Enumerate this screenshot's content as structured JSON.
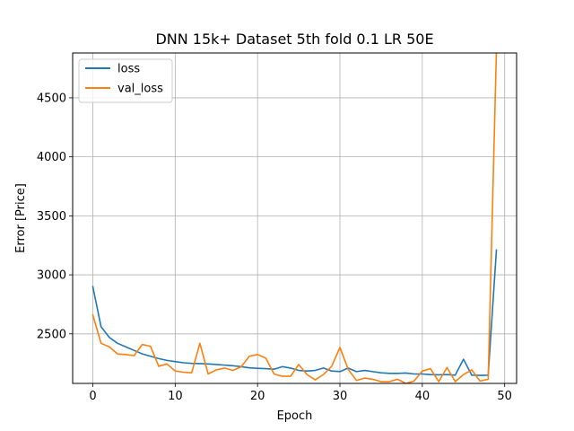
{
  "chart_data": {
    "type": "line",
    "title": "DNN 15k+ Dataset 5th fold 0.1 LR 50E",
    "xlabel": "Epoch",
    "ylabel": "Error [Price]",
    "xlim": [
      -2.45,
      51.45
    ],
    "ylim": [
      2080,
      4880
    ],
    "xticks": [
      0,
      10,
      20,
      30,
      40,
      50
    ],
    "yticks": [
      2500,
      3000,
      3500,
      4000,
      4500
    ],
    "grid": true,
    "legend_position": "top-left",
    "colors": {
      "loss": "#1f77b4",
      "val_loss": "#ff7f0e"
    },
    "x": [
      0,
      1,
      2,
      3,
      4,
      5,
      6,
      7,
      8,
      9,
      10,
      11,
      12,
      13,
      14,
      15,
      16,
      17,
      18,
      19,
      20,
      21,
      22,
      23,
      24,
      25,
      26,
      27,
      28,
      29,
      30,
      31,
      32,
      33,
      34,
      35,
      36,
      37,
      38,
      39,
      40,
      41,
      42,
      43,
      44,
      45,
      46,
      47,
      48,
      49
    ],
    "series": [
      {
        "name": "loss",
        "values": [
          2900,
          2560,
          2470,
          2420,
          2390,
          2360,
          2330,
          2310,
          2290,
          2275,
          2265,
          2255,
          2250,
          2248,
          2245,
          2240,
          2235,
          2230,
          2222,
          2212,
          2208,
          2205,
          2200,
          2222,
          2210,
          2190,
          2185,
          2190,
          2210,
          2185,
          2180,
          2210,
          2180,
          2190,
          2180,
          2170,
          2165,
          2165,
          2168,
          2160,
          2160,
          2155,
          2153,
          2155,
          2150,
          2285,
          2150,
          2148,
          2150,
          3210
        ]
      },
      {
        "name": "val_loss",
        "values": [
          2660,
          2420,
          2390,
          2330,
          2325,
          2315,
          2410,
          2395,
          2225,
          2245,
          2185,
          2175,
          2170,
          2420,
          2160,
          2195,
          2210,
          2190,
          2220,
          2310,
          2325,
          2295,
          2160,
          2140,
          2140,
          2240,
          2155,
          2110,
          2155,
          2225,
          2385,
          2200,
          2105,
          2125,
          2115,
          2095,
          2095,
          2115,
          2080,
          2100,
          2185,
          2205,
          2095,
          2215,
          2095,
          2155,
          2195,
          2100,
          2115,
          4900
        ]
      }
    ]
  }
}
